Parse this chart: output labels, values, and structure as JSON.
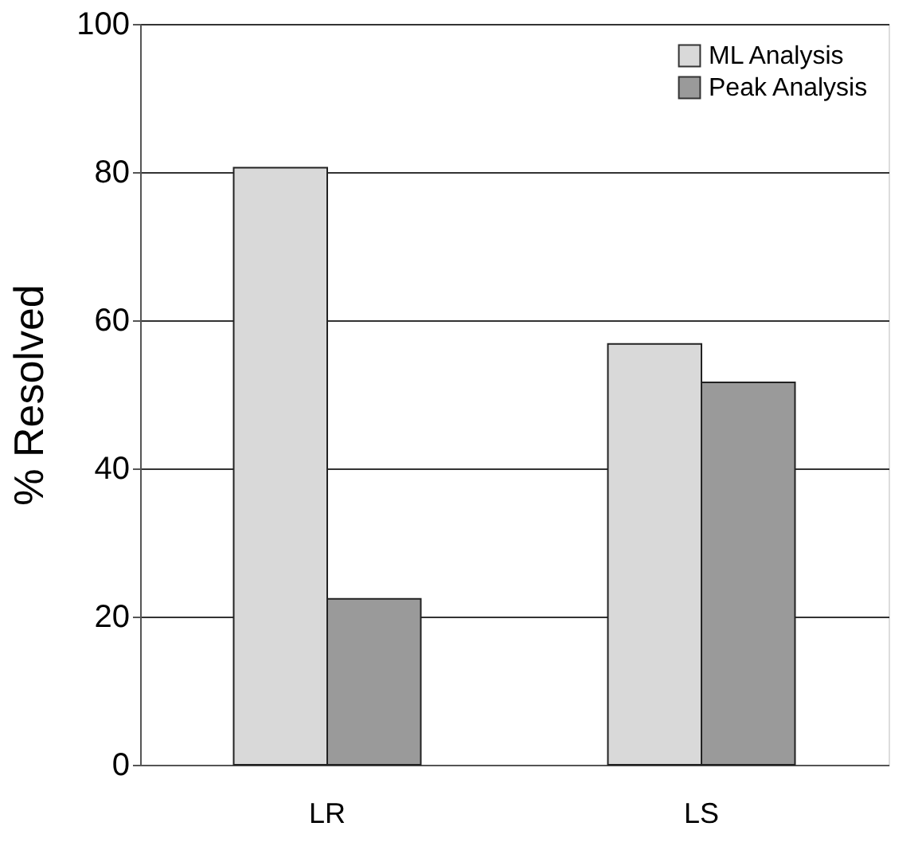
{
  "chart_data": {
    "type": "bar",
    "ylabel": "% Resolved",
    "categories": [
      "LR",
      "LS"
    ],
    "series": [
      {
        "name": "ML Analysis",
        "color": "#d9d9d9",
        "values": [
          80.6,
          56.8
        ]
      },
      {
        "name": "Peak Analysis",
        "color": "#9a9a9a",
        "values": [
          22.4,
          51.6
        ]
      }
    ],
    "ylim": [
      0,
      100
    ],
    "yticks": [
      0,
      20,
      40,
      60,
      80,
      100
    ],
    "grid": "y",
    "legend": "top right"
  }
}
